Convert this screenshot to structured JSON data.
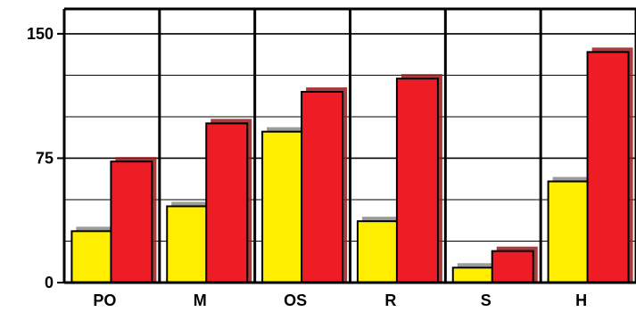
{
  "chart_data": {
    "type": "bar",
    "categories": [
      "PO",
      "M",
      "OS",
      "R",
      "S",
      "H"
    ],
    "series": [
      {
        "values": [
          31,
          46,
          91,
          37,
          9,
          61
        ]
      },
      {
        "values": [
          73,
          96,
          115,
          123,
          19,
          139
        ]
      }
    ],
    "ylim": [
      0,
      165
    ],
    "yticks": [
      0,
      75,
      150
    ],
    "ytick_labels": [
      "0",
      "75",
      "150"
    ],
    "grid": true,
    "colors": {
      "series": [
        "#ffee00",
        "#ee1c24"
      ],
      "shadow": [
        "#8a8a8a",
        "#9a1a1a"
      ],
      "outline": "#000000",
      "background": "#ffffff"
    }
  }
}
